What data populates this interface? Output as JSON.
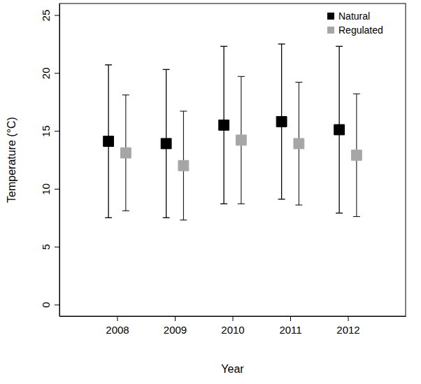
{
  "chart_data": {
    "type": "scatter",
    "x_label": "Year",
    "y_label": "Temperature (°C)",
    "x": [
      2008,
      2009,
      2010,
      2011,
      2012
    ],
    "xlim": [
      2007,
      2013
    ],
    "xticks": [
      2008,
      2009,
      2010,
      2011,
      2012
    ],
    "ylim": [
      -1,
      26
    ],
    "yticks": [
      0,
      5,
      10,
      15,
      20,
      25
    ],
    "legend": "top-right",
    "grid": false,
    "series": [
      {
        "name": "Natural",
        "color": "#000000",
        "marker": "square",
        "values": [
          14.1,
          13.9,
          15.5,
          15.8,
          15.1
        ],
        "lower": [
          7.5,
          7.5,
          8.7,
          9.1,
          7.9
        ],
        "upper": [
          20.7,
          20.3,
          22.3,
          22.5,
          22.3
        ]
      },
      {
        "name": "Regulated",
        "color": "#a6a6a6",
        "marker": "square",
        "values": [
          13.1,
          12.0,
          14.2,
          13.9,
          12.9
        ],
        "lower": [
          8.1,
          7.3,
          8.7,
          8.6,
          7.6
        ],
        "upper": [
          18.1,
          16.7,
          19.7,
          19.2,
          18.2
        ]
      }
    ]
  }
}
